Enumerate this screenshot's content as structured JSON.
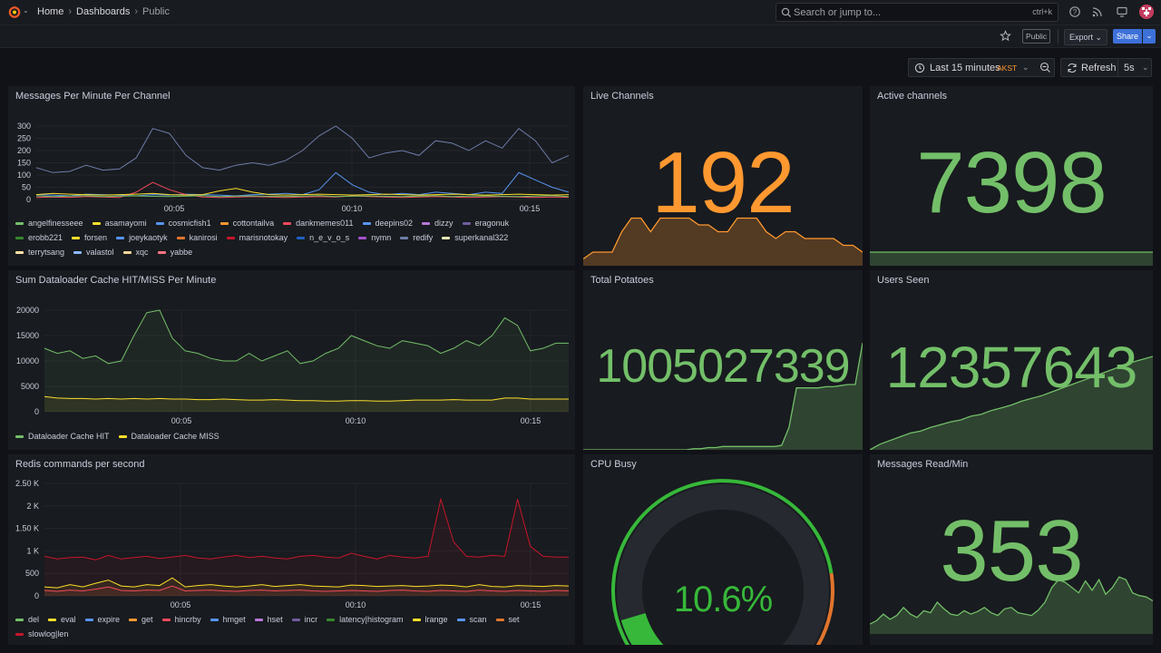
{
  "nav": {
    "breadcrumbs": [
      "Home",
      "Dashboards",
      "Public"
    ],
    "search_placeholder": "Search or jump to...",
    "search_shortcut": "ctrl+k"
  },
  "toolbar": {
    "badge": "Public",
    "export_label": "Export",
    "share_label": "Share"
  },
  "time": {
    "range_label": "Last 15 minutes",
    "timezone": "AKST",
    "refresh_label": "Refresh",
    "interval": "5s"
  },
  "colors": {
    "green": "#73bf69",
    "orange": "#ff9830",
    "red": "#f2495c",
    "blue": "#3d71d9"
  },
  "panels": {
    "messages": {
      "title": "Messages Per Minute Per Channel",
      "legend": [
        {
          "name": "angelfinesseee",
          "color": "#73bf69"
        },
        {
          "name": "asamayomi",
          "color": "#fade2a"
        },
        {
          "name": "cosmicfish1",
          "color": "#5794f2"
        },
        {
          "name": "cottontailva",
          "color": "#ff9830"
        },
        {
          "name": "dankmemes011",
          "color": "#f2495c"
        },
        {
          "name": "deepins02",
          "color": "#5794f2"
        },
        {
          "name": "dizzy",
          "color": "#b877d9"
        },
        {
          "name": "eragonuk",
          "color": "#705da0"
        },
        {
          "name": "erobb221",
          "color": "#37872d"
        },
        {
          "name": "forsen",
          "color": "#fade2a"
        },
        {
          "name": "joeykaotyk",
          "color": "#5794f2"
        },
        {
          "name": "kanirosi",
          "color": "#e0752d"
        },
        {
          "name": "marisnotokay",
          "color": "#c4162a"
        },
        {
          "name": "n_e_v_o_s",
          "color": "#1f60c4"
        },
        {
          "name": "nymn",
          "color": "#a352cc"
        },
        {
          "name": "redify",
          "color": "#6e7ba8"
        },
        {
          "name": "superkanal322",
          "color": "#e6e6b4"
        },
        {
          "name": "terrytsang",
          "color": "#fce2a5"
        },
        {
          "name": "valastol",
          "color": "#8ab8ff"
        },
        {
          "name": "xqc",
          "color": "#f4d598"
        },
        {
          "name": "yabbe",
          "color": "#ff7383"
        }
      ],
      "chart_data": {
        "type": "line",
        "x_ticks": [
          "00:05",
          "00:10",
          "00:15"
        ],
        "y_ticks": [
          "0",
          "50",
          "100",
          "150",
          "200",
          "250",
          "300"
        ],
        "ylim": [
          0,
          300
        ],
        "series": [
          {
            "name": "redify",
            "color": "#6e7ba8",
            "values": [
              130,
              110,
              115,
              140,
              120,
              125,
              170,
              290,
              270,
              180,
              130,
              120,
              140,
              150,
              140,
              160,
              200,
              260,
              300,
              250,
              170,
              190,
              200,
              180,
              240,
              230,
              200,
              240,
              210,
              290,
              240,
              150,
              180
            ]
          },
          {
            "name": "n_e_v_o_s",
            "color": "#5794f2",
            "values": [
              20,
              18,
              15,
              22,
              20,
              18,
              15,
              20,
              18,
              22,
              20,
              18,
              15,
              20,
              22,
              25,
              20,
              40,
              110,
              60,
              30,
              20,
              25,
              20,
              30,
              25,
              20,
              30,
              25,
              110,
              80,
              50,
              30
            ]
          },
          {
            "name": "dankmemes011",
            "color": "#f2495c",
            "values": [
              8,
              10,
              9,
              12,
              10,
              8,
              30,
              70,
              40,
              20,
              10,
              8,
              10,
              12,
              10,
              8,
              10,
              12,
              10,
              15,
              12,
              10,
              8,
              10,
              12,
              10,
              8,
              10,
              12,
              10,
              8,
              10,
              9
            ]
          },
          {
            "name": "forsen",
            "color": "#fade2a",
            "values": [
              20,
              25,
              22,
              20,
              18,
              20,
              22,
              25,
              20,
              18,
              20,
              35,
              45,
              30,
              20,
              18,
              20,
              22,
              20,
              18,
              20,
              22,
              20,
              18,
              20,
              22,
              20,
              18,
              20,
              22,
              20,
              18,
              20
            ]
          },
          {
            "name": "angelfinesseee",
            "color": "#73bf69",
            "values": [
              15,
              12,
              14,
              16,
              12,
              14,
              15,
              13,
              12,
              14,
              16,
              12,
              14,
              15,
              13,
              12,
              14,
              16,
              12,
              14,
              15,
              13,
              12,
              14,
              16,
              12,
              14,
              15,
              13,
              12,
              14,
              16,
              12
            ]
          }
        ]
      }
    },
    "live_channels": {
      "title": "Live Channels",
      "value": "192",
      "color": "#ff9830",
      "spark_values": [
        180,
        182,
        182,
        182,
        188,
        192,
        192,
        188,
        192,
        192,
        192,
        192,
        190,
        190,
        188,
        188,
        192,
        192,
        192,
        188,
        186,
        188,
        188,
        186,
        186,
        186,
        186,
        184,
        184,
        182
      ]
    },
    "active_channels": {
      "title": "Active channels",
      "value": "7398",
      "color": "#73bf69",
      "spark_values": [
        7398,
        7398,
        7398,
        7398,
        7398,
        7398,
        7398,
        7398,
        7398,
        7398
      ]
    },
    "cache": {
      "title": "Sum Dataloader Cache HIT/MISS Per Minute",
      "legend": [
        {
          "name": "Dataloader Cache HIT",
          "color": "#73bf69"
        },
        {
          "name": "Dataloader Cache MISS",
          "color": "#fade2a"
        }
      ],
      "chart_data": {
        "type": "area",
        "x_ticks": [
          "00:05",
          "00:10",
          "00:15"
        ],
        "y_ticks": [
          "0",
          "5000",
          "10000",
          "15000",
          "20000"
        ],
        "ylim": [
          0,
          20000
        ],
        "series": [
          {
            "name": "Dataloader Cache HIT",
            "color": "#73bf69",
            "values": [
              12500,
              11500,
              12000,
              10500,
              11000,
              9500,
              10000,
              15000,
              19500,
              20000,
              14500,
              12000,
              11500,
              10500,
              10000,
              10000,
              11500,
              10000,
              11000,
              12000,
              9500,
              10000,
              11500,
              12500,
              15000,
              14000,
              13000,
              12500,
              14000,
              13500,
              13000,
              11500,
              12500,
              14000,
              13000,
              15000,
              18500,
              17000,
              12000,
              12500,
              13500,
              13500
            ]
          },
          {
            "name": "Dataloader Cache MISS",
            "color": "#fade2a",
            "values": [
              3000,
              2700,
              2600,
              2600,
              2500,
              2600,
              2500,
              2600,
              2500,
              2600,
              2500,
              2500,
              2400,
              2400,
              2500,
              2400,
              2300,
              2300,
              2400,
              2300,
              2200,
              2200,
              2100,
              2100,
              2200,
              2200,
              2100,
              2100,
              2200,
              2300,
              2300,
              2300,
              2400,
              2300,
              2300,
              2300,
              2700,
              2700,
              2500,
              2500,
              2500,
              2500
            ]
          }
        ]
      }
    },
    "total_potatoes": {
      "title": "Total Potatoes",
      "value": "1005027339",
      "color": "#73bf69",
      "spark_values": [
        0,
        0,
        0,
        0,
        0,
        0,
        0,
        0,
        0,
        0,
        0,
        0,
        0,
        0,
        0,
        1,
        1,
        2,
        2,
        3,
        3,
        3,
        3,
        3,
        3,
        3,
        3,
        4,
        20,
        55,
        55,
        55,
        55,
        56,
        56,
        57,
        58,
        58,
        95
      ]
    },
    "users_seen": {
      "title": "Users Seen",
      "value": "12357643",
      "color": "#73bf69",
      "spark_values": [
        0,
        6,
        10,
        14,
        18,
        20,
        24,
        27,
        30,
        32,
        36,
        38,
        42,
        45,
        48,
        52,
        55,
        58,
        62,
        66,
        70,
        74,
        78,
        82,
        86,
        90,
        94,
        97,
        100
      ]
    },
    "redis": {
      "title": "Redis commands per second",
      "legend": [
        {
          "name": "del",
          "color": "#73bf69"
        },
        {
          "name": "eval",
          "color": "#fade2a"
        },
        {
          "name": "expire",
          "color": "#5794f2"
        },
        {
          "name": "get",
          "color": "#ff9830"
        },
        {
          "name": "hincrby",
          "color": "#f2495c"
        },
        {
          "name": "hmget",
          "color": "#5794f2"
        },
        {
          "name": "hset",
          "color": "#b877d9"
        },
        {
          "name": "incr",
          "color": "#705da0"
        },
        {
          "name": "latency|histogram",
          "color": "#37872d"
        },
        {
          "name": "lrange",
          "color": "#fade2a"
        },
        {
          "name": "scan",
          "color": "#5794f2"
        },
        {
          "name": "set",
          "color": "#e0752d"
        },
        {
          "name": "slowlog|len",
          "color": "#c4162a"
        }
      ],
      "chart_data": {
        "type": "area",
        "x_ticks": [
          "00:05",
          "00:10",
          "00:15"
        ],
        "y_ticks": [
          "0",
          "500",
          "1 K",
          "1.50 K",
          "2 K",
          "2.50 K"
        ],
        "ylim": [
          0,
          2500
        ],
        "series": [
          {
            "name": "slowlog|len",
            "color": "#c4162a",
            "values": [
              880,
              820,
              850,
              860,
              800,
              900,
              820,
              850,
              880,
              830,
              860,
              900,
              840,
              820,
              860,
              900,
              850,
              880,
              840,
              820,
              880,
              900,
              860,
              840,
              950,
              880,
              820,
              900,
              860,
              840,
              880,
              2150,
              1200,
              880,
              860,
              900,
              880,
              2150,
              1100,
              880,
              860,
              860
            ]
          },
          {
            "name": "lrange",
            "color": "#fade2a",
            "values": [
              200,
              180,
              250,
              200,
              280,
              350,
              220,
              200,
              250,
              230,
              400,
              200,
              230,
              250,
              220,
              200,
              220,
              250,
              210,
              230,
              250,
              220,
              210,
              200,
              240,
              230,
              210,
              220,
              230,
              210,
              220,
              240,
              230,
              200,
              250,
              210,
              200,
              230,
              220,
              210,
              230,
              220
            ]
          },
          {
            "name": "hincrby",
            "color": "#f2495c",
            "values": [
              120,
              100,
              130,
              110,
              150,
              200,
              120,
              110,
              130,
              120,
              220,
              110,
              120,
              130,
              110,
              100,
              120,
              130,
              110,
              120,
              130,
              110,
              100,
              110,
              120,
              110,
              100,
              120,
              130,
              110,
              100,
              120,
              110,
              100,
              130,
              110,
              100,
              120,
              110,
              100,
              120,
              110
            ]
          }
        ]
      }
    },
    "cpu_busy": {
      "title": "CPU Busy",
      "value": "10.6%",
      "fraction": 0.106,
      "color": "#37b83a"
    },
    "messages_read": {
      "title": "Messages Read/Min",
      "value": "353",
      "color": "#73bf69",
      "spark_values": [
        15,
        20,
        30,
        22,
        28,
        40,
        30,
        25,
        35,
        32,
        48,
        38,
        30,
        28,
        35,
        30,
        34,
        40,
        32,
        28,
        38,
        40,
        32,
        30,
        28,
        36,
        48,
        70,
        82,
        78,
        70,
        62,
        80,
        66,
        82,
        60,
        70,
        86,
        82,
        62,
        58,
        56,
        50
      ]
    }
  }
}
